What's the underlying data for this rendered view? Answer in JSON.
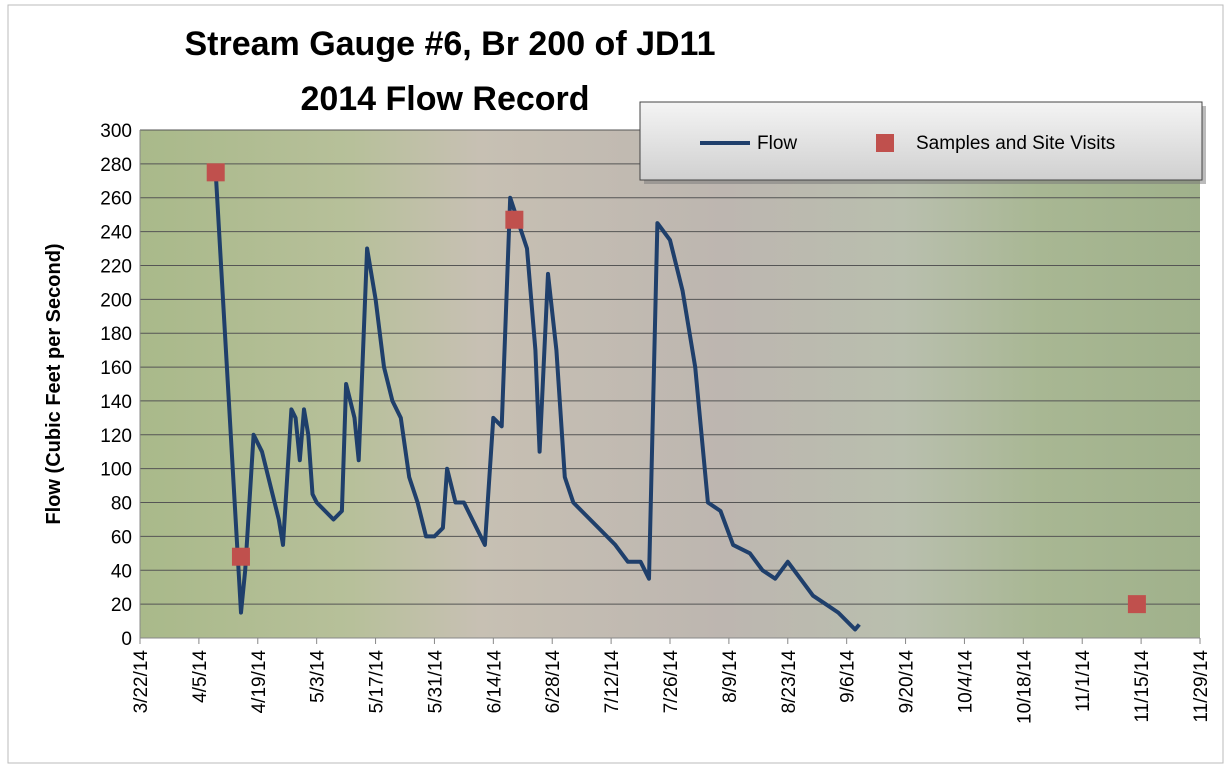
{
  "chart_data": {
    "type": "line",
    "title": "Stream Gauge #6, Br 200 of JD11",
    "subtitle": "2014 Flow Record",
    "y_label": "Flow (Cubic Feet per Second)",
    "xlim": [
      "3/22/14",
      "11/29/14"
    ],
    "xticks": [
      "3/22/14",
      "4/5/14",
      "4/19/14",
      "5/3/14",
      "5/17/14",
      "5/31/14",
      "6/14/14",
      "6/28/14",
      "7/12/14",
      "7/26/14",
      "8/9/14",
      "8/23/14",
      "9/6/14",
      "9/20/14",
      "10/4/14",
      "10/18/14",
      "11/1/14",
      "11/15/14",
      "11/29/14"
    ],
    "ylim": [
      0,
      300
    ],
    "yticks": [
      0,
      20,
      40,
      60,
      80,
      100,
      120,
      140,
      160,
      180,
      200,
      220,
      240,
      260,
      280,
      300
    ],
    "grid": true,
    "legend": "top-right",
    "series": [
      {
        "name": "Flow",
        "kind": "line",
        "color": "#1f3f6b",
        "x": [
          "4/9/14",
          "4/15/14",
          "4/16/14",
          "4/18/14",
          "4/20/14",
          "4/22/14",
          "4/24/14",
          "4/25/14",
          "4/27/14",
          "4/28/14",
          "4/29/14",
          "4/30/14",
          "5/1/14",
          "5/2/14",
          "5/3/14",
          "5/5/14",
          "5/7/14",
          "5/9/14",
          "5/10/14",
          "5/12/14",
          "5/13/14",
          "5/15/14",
          "5/17/14",
          "5/19/14",
          "5/21/14",
          "5/23/14",
          "5/25/14",
          "5/27/14",
          "5/29/14",
          "5/31/14",
          "6/2/14",
          "6/3/14",
          "6/5/14",
          "6/7/14",
          "6/9/14",
          "6/11/14",
          "6/12/14",
          "6/14/14",
          "6/16/14",
          "6/18/14",
          "6/20/14",
          "6/22/14",
          "6/24/14",
          "6/25/14",
          "6/27/14",
          "6/29/14",
          "7/1/14",
          "7/3/14",
          "7/5/14",
          "7/9/14",
          "7/13/14",
          "7/16/14",
          "7/19/14",
          "7/21/14",
          "7/23/14",
          "7/26/14",
          "7/29/14",
          "8/1/14",
          "8/4/14",
          "8/7/14",
          "8/10/14",
          "8/14/14",
          "8/17/14",
          "8/20/14",
          "8/23/14",
          "8/26/14",
          "8/29/14",
          "9/1/14",
          "9/4/14",
          "9/8/14",
          "9/9/14"
        ],
        "values": [
          275,
          15,
          40,
          120,
          110,
          90,
          70,
          55,
          135,
          130,
          105,
          135,
          120,
          85,
          80,
          75,
          70,
          75,
          150,
          130,
          105,
          230,
          200,
          160,
          140,
          130,
          95,
          80,
          60,
          60,
          65,
          100,
          80,
          80,
          70,
          60,
          55,
          130,
          125,
          260,
          245,
          230,
          170,
          110,
          215,
          170,
          95,
          80,
          75,
          65,
          55,
          45,
          45,
          35,
          245,
          235,
          205,
          160,
          80,
          75,
          55,
          50,
          40,
          35,
          45,
          35,
          25,
          20,
          15,
          5,
          8
        ]
      },
      {
        "name": "Samples and Site Visits",
        "kind": "marker",
        "color": "#c0504d",
        "x": [
          "4/9/14",
          "4/15/14",
          "6/19/14",
          "11/14/14"
        ],
        "values": [
          275,
          48,
          247,
          20
        ]
      }
    ]
  }
}
